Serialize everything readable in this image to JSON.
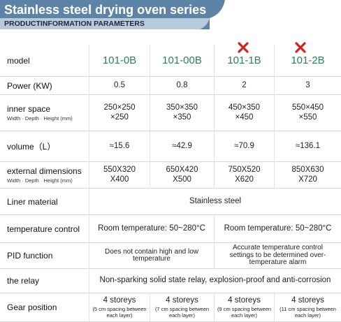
{
  "header": {
    "title": "Stainless steel drying oven series",
    "subtitle": "PRODUCTINFORMATION PARAMETERS"
  },
  "table": {
    "rows": [
      {
        "label": "model",
        "cells": [
          "101-0B",
          "101-00B",
          "101-1B",
          "101-2B"
        ]
      },
      {
        "label": "Power (KW)",
        "cells": [
          "0.5",
          "0.8",
          "2",
          "3"
        ]
      },
      {
        "label": "inner space",
        "sublabel": "Width · Depth · Height (mm)",
        "cells": [
          "250×250\n×250",
          "350×350\n×350",
          "450×350\n×450",
          "550×450\n×550"
        ]
      },
      {
        "label": "volume（L）",
        "cells": [
          "≈15.6",
          "≈42.9",
          "≈70.9",
          "≈136.1"
        ]
      },
      {
        "label": "external dimensions",
        "sublabel": "Width · Depth · Height (mm)",
        "cells": [
          "550X320\nX400",
          "650X420\nX500",
          "750X520\nX620",
          "850X630\nX720"
        ]
      },
      {
        "label": "Liner material",
        "cells": [
          "Stainless steel"
        ]
      },
      {
        "label": "temperature control",
        "cells": [
          "Room temperature: 50~280°C",
          "Room temperature: 50~280°C"
        ]
      },
      {
        "label": "PID function",
        "cells": [
          "Does not contain high and low temperature",
          "Accurate temperature control settings to be determined over-temperature alarm"
        ]
      },
      {
        "label": "the relay",
        "cells": [
          "Non-sparking solid state relay, explosion-proof and anti-corrosion"
        ]
      },
      {
        "label": "Gear position",
        "cells": [
          {
            "text": "4 storeys",
            "note": "(5 cm spacing between each layer)"
          },
          {
            "text": "4 storeys",
            "note": "(7 cm spacing between each layer)"
          },
          {
            "text": "4 storeys",
            "note": "(9 cm spacing between each layer)"
          },
          {
            "text": "4 storeys",
            "note": "(11 cm spacing between each layer)"
          }
        ]
      }
    ]
  }
}
